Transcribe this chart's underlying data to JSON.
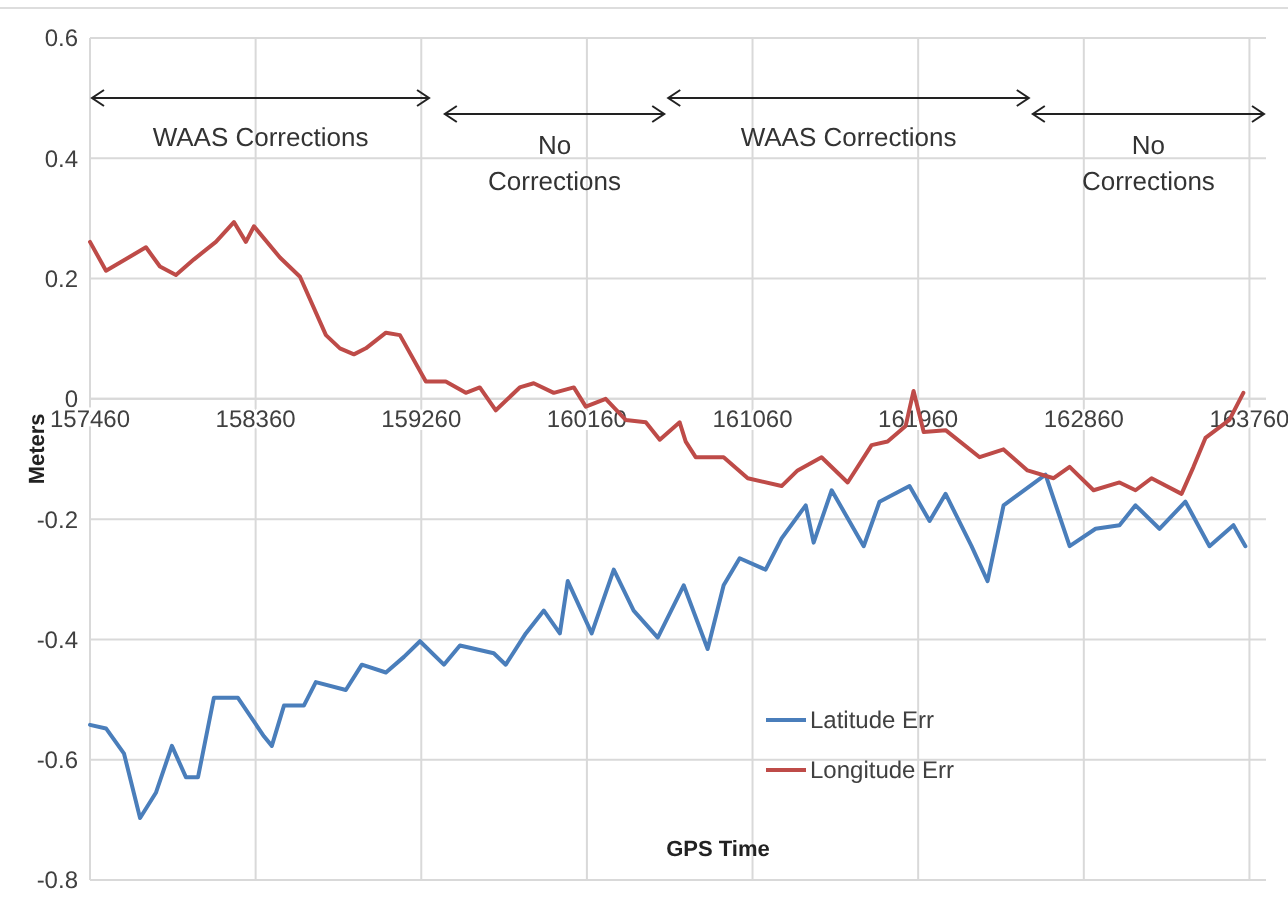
{
  "chart_data": {
    "type": "line",
    "xlabel": "GPS Time",
    "ylabel": "Meters",
    "xlim": [
      157460,
      163850
    ],
    "xticks": [
      157460,
      158360,
      159260,
      160160,
      161060,
      161960,
      162860,
      163760
    ],
    "ylim": [
      -0.8,
      0.6
    ],
    "yticks": [
      -0.8,
      -0.6,
      -0.4,
      -0.2,
      0,
      0.2,
      0.4,
      0.6
    ],
    "grid": true,
    "legend": "bottom right",
    "marker": "none",
    "line_style": "solid",
    "annotations": [
      "WAAS Corrections",
      "No Corrections",
      "WAAS Corrections",
      "No Corrections"
    ],
    "x": [
      157460,
      157547,
      157645,
      157732,
      157818,
      157905,
      157981,
      158047,
      158133,
      158264,
      158405,
      158448,
      158514,
      158622,
      158687,
      158850,
      158937,
      159068,
      159166,
      159253,
      159383,
      159470,
      159654,
      159719,
      159828,
      159926,
      160013,
      160056,
      160186,
      160306,
      160414,
      160545,
      160686,
      160816,
      160903,
      160990,
      161131,
      161218,
      161349,
      161392,
      161490,
      161664,
      161750,
      161913,
      162022,
      162109,
      162250,
      162337,
      162424,
      162652,
      162783,
      162924,
      163054,
      163141,
      163271,
      163412,
      163543,
      163673,
      163738
    ],
    "series": [
      {
        "name": "Latitude Err",
        "color": "#4a7ebb",
        "values": [
          -0.542,
          -0.548,
          -0.59,
          -0.697,
          -0.655,
          -0.577,
          -0.629,
          -0.629,
          -0.497,
          -0.497,
          -0.561,
          -0.577,
          -0.51,
          -0.51,
          -0.471,
          -0.484,
          -0.442,
          -0.455,
          -0.429,
          -0.403,
          -0.442,
          -0.41,
          -0.423,
          -0.442,
          -0.39,
          -0.352,
          -0.39,
          -0.303,
          -0.39,
          -0.284,
          -0.352,
          -0.397,
          -0.31,
          -0.416,
          -0.31,
          -0.265,
          -0.284,
          -0.232,
          -0.177,
          -0.239,
          -0.152,
          -0.245,
          -0.171,
          -0.145,
          -0.203,
          -0.158,
          -0.245,
          -0.303,
          -0.177,
          -0.126,
          -0.245,
          -0.216,
          -0.21,
          -0.177,
          -0.216,
          -0.171,
          -0.245,
          -0.21,
          -0.245
        ]
      },
      {
        "name": "Longitude Err",
        "color": "#be4b48",
        "x": [
          157460,
          157547,
          157764,
          157840,
          157927,
          158025,
          158144,
          158242,
          158307,
          158351,
          158492,
          158601,
          158742,
          158818,
          158894,
          158959,
          159068,
          159144,
          159285,
          159393,
          159502,
          159578,
          159665,
          159795,
          159871,
          159980,
          160089,
          160154,
          160262,
          160371,
          160480,
          160556,
          160664,
          160697,
          160751,
          160903,
          161034,
          161218,
          161305,
          161435,
          161577,
          161707,
          161794,
          161892,
          161935,
          161990,
          162109,
          162294,
          162424,
          162554,
          162696,
          162783,
          162913,
          163054,
          163141,
          163228,
          163391,
          163456,
          163521,
          163651,
          163727
        ],
        "values": [
          0.261,
          0.213,
          0.252,
          0.22,
          0.206,
          0.232,
          0.261,
          0.294,
          0.261,
          0.287,
          0.235,
          0.203,
          0.106,
          0.084,
          0.074,
          0.084,
          0.11,
          0.106,
          0.029,
          0.029,
          0.01,
          0.019,
          -0.019,
          0.019,
          0.026,
          0.01,
          0.019,
          -0.013,
          0.0,
          -0.035,
          -0.039,
          -0.068,
          -0.039,
          -0.071,
          -0.097,
          -0.097,
          -0.132,
          -0.145,
          -0.119,
          -0.097,
          -0.139,
          -0.077,
          -0.071,
          -0.045,
          0.013,
          -0.055,
          -0.052,
          -0.097,
          -0.084,
          -0.119,
          -0.132,
          -0.113,
          -0.152,
          -0.139,
          -0.152,
          -0.132,
          -0.158,
          -0.113,
          -0.065,
          -0.035,
          0.01
        ]
      }
    ]
  }
}
